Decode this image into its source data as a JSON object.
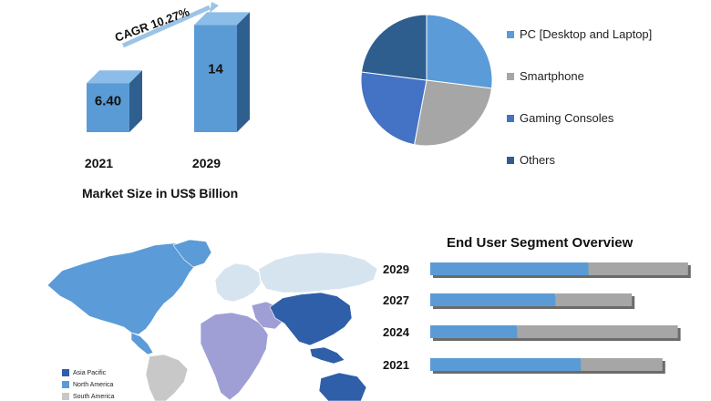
{
  "market": {
    "cagr_label": "CAGR 10.27%",
    "caption": "Market Size in US$ Billion"
  },
  "pie": {
    "legend": [
      {
        "label": "PC [Desktop and Laptop]",
        "color": "#5a9bd8"
      },
      {
        "label": "Smartphone",
        "color": "#a6a6a6"
      },
      {
        "label": "Gaming Consoles",
        "color": "#4472c4"
      },
      {
        "label": "Others",
        "color": "#2e5e8e"
      }
    ]
  },
  "map": {
    "legend": [
      {
        "label": "Asia Pacific",
        "color": "#2e5fa8"
      },
      {
        "label": "North America",
        "color": "#5a9bd8"
      },
      {
        "label": "South America",
        "color": "#c8c8c8"
      }
    ]
  },
  "end_user": {
    "title": "End User  Segment Overview"
  },
  "chart_data": [
    {
      "type": "bar",
      "categories": [
        "2021",
        "2029"
      ],
      "values": [
        6.4,
        14
      ],
      "value_labels": [
        "6.40",
        "14"
      ],
      "title": "",
      "xlabel": "Market Size in US$ Billion",
      "ylabel": "",
      "ylim": [
        0,
        15
      ],
      "colors": {
        "front": "#5b9bd5",
        "side": "#2f5f8f",
        "top": "#8cbde8"
      }
    },
    {
      "type": "pie",
      "labels": [
        "PC [Desktop and Laptop]",
        "Smartphone",
        "Gaming Consoles",
        "Others"
      ],
      "values": [
        27,
        26,
        24,
        23
      ],
      "colors": [
        "#5a9bd8",
        "#a6a6a6",
        "#4472c4",
        "#2e5e8e"
      ]
    },
    {
      "type": "bar",
      "orientation": "horizontal",
      "title": "End User  Segment Overview",
      "categories": [
        "2029",
        "2027",
        "2024",
        "2021"
      ],
      "series": [
        {
          "values": [
            62,
            49,
            34,
            59
          ],
          "color": "#5b9bd5"
        },
        {
          "values": [
            39,
            30,
            63,
            32
          ],
          "color": "#a6a6a6"
        }
      ],
      "xlim": [
        0,
        101
      ]
    }
  ]
}
